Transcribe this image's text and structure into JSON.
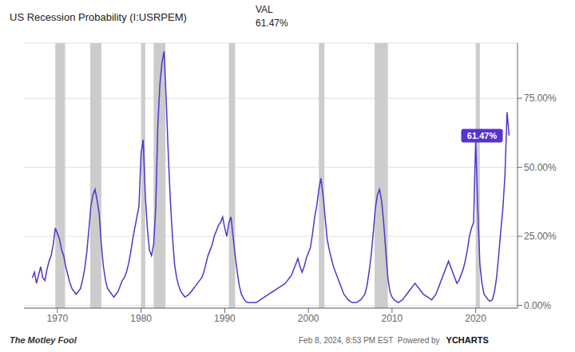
{
  "chart_data": {
    "type": "line",
    "title": "US Recession Probability (I:USRPEM)",
    "header": {
      "label": "VAL",
      "text": "61.47%"
    },
    "footer_left": "The Motley Fool",
    "footer_right": [
      "Feb 8, 2024, 8:53 PM EST  Powered by",
      "YCHARTS"
    ],
    "color": "#5533CC",
    "grid": true,
    "xlim": [
      1966.0,
      2025.0
    ],
    "xticks": [
      1970,
      1980,
      1990,
      2000,
      2010,
      2020
    ],
    "ylim": [
      -1,
      95
    ],
    "yticks": [
      {
        "value": 0,
        "label": "0.00%"
      },
      {
        "value": 25,
        "label": "25.00%"
      },
      {
        "value": 50,
        "label": "50.00%"
      },
      {
        "value": 75,
        "label": "75.00%"
      }
    ],
    "shaded_periods": {
      "color": "#cccccc",
      "ranges": [
        [
          1969.75,
          1970.92
        ],
        [
          1973.92,
          1975.25
        ],
        [
          1980.0,
          1980.5
        ],
        [
          1981.5,
          1982.92
        ],
        [
          1990.5,
          1991.25
        ],
        [
          2001.25,
          2001.92
        ],
        [
          2007.92,
          2009.5
        ],
        [
          2020.0,
          2020.5
        ]
      ]
    },
    "annotations": [
      {
        "text": "61.47%",
        "x": 2024.0,
        "y": 61.47,
        "color": "#5533CC"
      }
    ],
    "x": [
      1967.0,
      1967.25,
      1967.5,
      1967.75,
      1968.0,
      1968.25,
      1968.5,
      1968.75,
      1969.0,
      1969.25,
      1969.5,
      1969.75,
      1970.0,
      1970.25,
      1970.5,
      1970.75,
      1971.0,
      1971.25,
      1971.5,
      1971.75,
      1972.0,
      1972.25,
      1972.5,
      1972.75,
      1973.0,
      1973.25,
      1973.5,
      1973.75,
      1974.0,
      1974.25,
      1974.5,
      1974.75,
      1975.0,
      1975.25,
      1975.5,
      1975.75,
      1976.0,
      1976.25,
      1976.5,
      1976.75,
      1977.0,
      1977.25,
      1977.5,
      1977.75,
      1978.0,
      1978.25,
      1978.5,
      1978.75,
      1979.0,
      1979.25,
      1979.5,
      1979.75,
      1980.0,
      1980.25,
      1980.5,
      1980.75,
      1981.0,
      1981.25,
      1981.5,
      1981.75,
      1982.0,
      1982.25,
      1982.5,
      1982.75,
      1983.0,
      1983.25,
      1983.5,
      1983.75,
      1984.0,
      1984.25,
      1984.5,
      1984.75,
      1985.0,
      1985.25,
      1985.5,
      1985.75,
      1986.0,
      1986.25,
      1986.5,
      1986.75,
      1987.0,
      1987.25,
      1987.5,
      1987.75,
      1988.0,
      1988.25,
      1988.5,
      1988.75,
      1989.0,
      1989.25,
      1989.5,
      1989.75,
      1990.0,
      1990.25,
      1990.5,
      1990.75,
      1991.0,
      1991.25,
      1991.5,
      1991.75,
      1992.0,
      1992.25,
      1992.5,
      1992.75,
      1993.0,
      1993.25,
      1993.5,
      1993.75,
      1994.0,
      1994.25,
      1994.5,
      1994.75,
      1995.0,
      1995.25,
      1995.5,
      1995.75,
      1996.0,
      1996.25,
      1996.5,
      1996.75,
      1997.0,
      1997.25,
      1997.5,
      1997.75,
      1998.0,
      1998.25,
      1998.5,
      1998.75,
      1999.0,
      1999.25,
      1999.5,
      1999.75,
      2000.0,
      2000.25,
      2000.5,
      2000.75,
      2001.0,
      2001.25,
      2001.5,
      2001.75,
      2002.0,
      2002.25,
      2002.5,
      2002.75,
      2003.0,
      2003.25,
      2003.5,
      2003.75,
      2004.0,
      2004.25,
      2004.5,
      2004.75,
      2005.0,
      2005.25,
      2005.5,
      2005.75,
      2006.0,
      2006.25,
      2006.5,
      2006.75,
      2007.0,
      2007.25,
      2007.5,
      2007.75,
      2008.0,
      2008.25,
      2008.5,
      2008.75,
      2009.0,
      2009.25,
      2009.5,
      2009.75,
      2010.0,
      2010.25,
      2010.5,
      2010.75,
      2011.0,
      2011.25,
      2011.5,
      2011.75,
      2012.0,
      2012.25,
      2012.5,
      2012.75,
      2013.0,
      2013.25,
      2013.5,
      2013.75,
      2014.0,
      2014.25,
      2014.5,
      2014.75,
      2015.0,
      2015.25,
      2015.5,
      2015.75,
      2016.0,
      2016.25,
      2016.5,
      2016.75,
      2017.0,
      2017.25,
      2017.5,
      2017.75,
      2018.0,
      2018.25,
      2018.5,
      2018.75,
      2019.0,
      2019.25,
      2019.5,
      2019.75,
      2020.0,
      2020.25,
      2020.5,
      2020.75,
      2021.0,
      2021.25,
      2021.5,
      2021.75,
      2022.0,
      2022.25,
      2022.5,
      2022.75,
      2023.0,
      2023.25,
      2023.5,
      2023.75,
      2024.0
    ],
    "values": [
      10.0,
      12.0,
      8.0,
      11.0,
      14.0,
      10.0,
      9.0,
      13.0,
      16.0,
      18.0,
      22.0,
      28.0,
      26.0,
      24.0,
      20.0,
      18.0,
      14.0,
      11.0,
      8.0,
      6.0,
      5.0,
      4.0,
      5.0,
      6.0,
      9.0,
      13.0,
      19.0,
      27.0,
      36.0,
      40.0,
      42.0,
      38.0,
      33.0,
      22.0,
      14.0,
      9.0,
      6.0,
      5.0,
      4.0,
      3.0,
      4.0,
      5.0,
      7.0,
      9.0,
      10.0,
      12.0,
      15.0,
      19.0,
      24.0,
      28.0,
      32.0,
      36.0,
      55.0,
      60.0,
      40.0,
      28.0,
      20.0,
      18.0,
      22.0,
      35.0,
      65.0,
      80.0,
      88.0,
      92.0,
      75.0,
      55.0,
      38.0,
      25.0,
      15.0,
      10.0,
      7.0,
      5.0,
      4.0,
      3.0,
      3.5,
      4.0,
      5.0,
      6.0,
      7.0,
      8.0,
      9.0,
      10.0,
      12.0,
      15.0,
      18.0,
      20.0,
      22.0,
      25.0,
      27.0,
      29.0,
      30.0,
      32.0,
      28.0,
      25.0,
      30.0,
      32.0,
      25.0,
      18.0,
      12.0,
      7.0,
      4.0,
      2.5,
      1.5,
      1.0,
      1.0,
      1.0,
      1.0,
      1.0,
      1.5,
      2.0,
      2.5,
      3.0,
      3.5,
      4.0,
      4.5,
      5.0,
      5.5,
      6.0,
      6.5,
      7.0,
      7.5,
      8.0,
      9.0,
      10.0,
      11.0,
      13.0,
      15.0,
      17.0,
      14.0,
      12.0,
      14.0,
      17.0,
      19.0,
      21.0,
      26.0,
      32.0,
      36.0,
      42.0,
      46.0,
      40.0,
      32.0,
      24.0,
      20.0,
      17.0,
      14.0,
      12.0,
      10.0,
      8.0,
      6.0,
      4.0,
      3.0,
      2.0,
      1.5,
      1.0,
      1.0,
      1.0,
      1.5,
      2.0,
      3.0,
      4.0,
      7.0,
      12.0,
      18.0,
      26.0,
      35.0,
      40.0,
      42.0,
      38.0,
      30.0,
      20.0,
      10.0,
      5.0,
      3.0,
      2.0,
      1.5,
      1.0,
      1.5,
      2.0,
      3.0,
      4.0,
      5.0,
      6.0,
      7.0,
      8.0,
      7.0,
      6.0,
      5.0,
      4.0,
      3.5,
      3.0,
      2.5,
      2.0,
      3.0,
      4.0,
      6.0,
      8.0,
      10.0,
      12.0,
      14.0,
      16.0,
      14.0,
      12.0,
      10.0,
      8.0,
      9.0,
      11.0,
      13.0,
      16.0,
      20.0,
      25.0,
      28.0,
      30.0,
      60.0,
      35.0,
      15.0,
      8.0,
      4.0,
      3.0,
      2.0,
      1.5,
      2.0,
      5.0,
      10.0,
      18.0,
      27.0,
      35.0,
      47.0,
      70.0,
      61.47
    ]
  }
}
